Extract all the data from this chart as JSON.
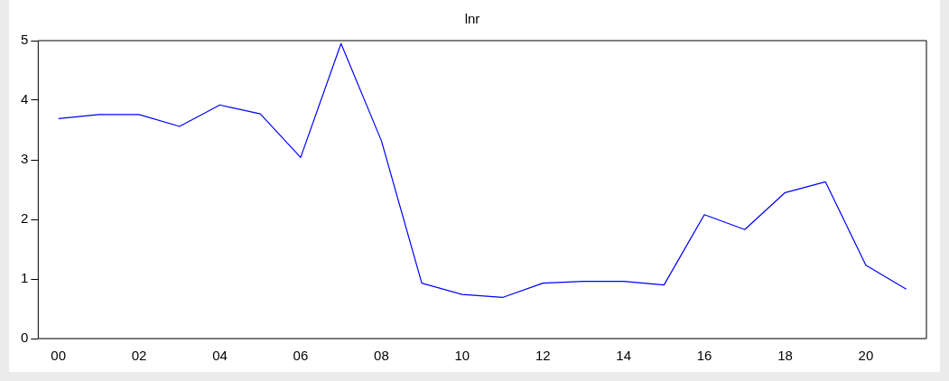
{
  "chart_data": {
    "type": "line",
    "title": "lnr",
    "categories": [
      "00",
      null,
      "02",
      null,
      "04",
      null,
      "06",
      null,
      "08",
      null,
      "10",
      null,
      "12",
      null,
      "14",
      null,
      "16",
      null,
      "18",
      null,
      "20",
      null
    ],
    "series": [
      {
        "color": "#0000ff",
        "values": [
          3.69,
          3.76,
          3.76,
          3.56,
          3.92,
          3.77,
          3.04,
          4.95,
          3.32,
          0.93,
          0.74,
          0.69,
          0.93,
          0.96,
          0.96,
          0.9,
          2.08,
          1.83,
          2.45,
          2.63,
          1.23,
          0.83
        ]
      }
    ],
    "ylim": [
      0,
      5
    ],
    "yticks": [
      0,
      1,
      2,
      3,
      4,
      5
    ],
    "grid": false,
    "legend": false,
    "marker": "none",
    "line_style": "solid"
  }
}
